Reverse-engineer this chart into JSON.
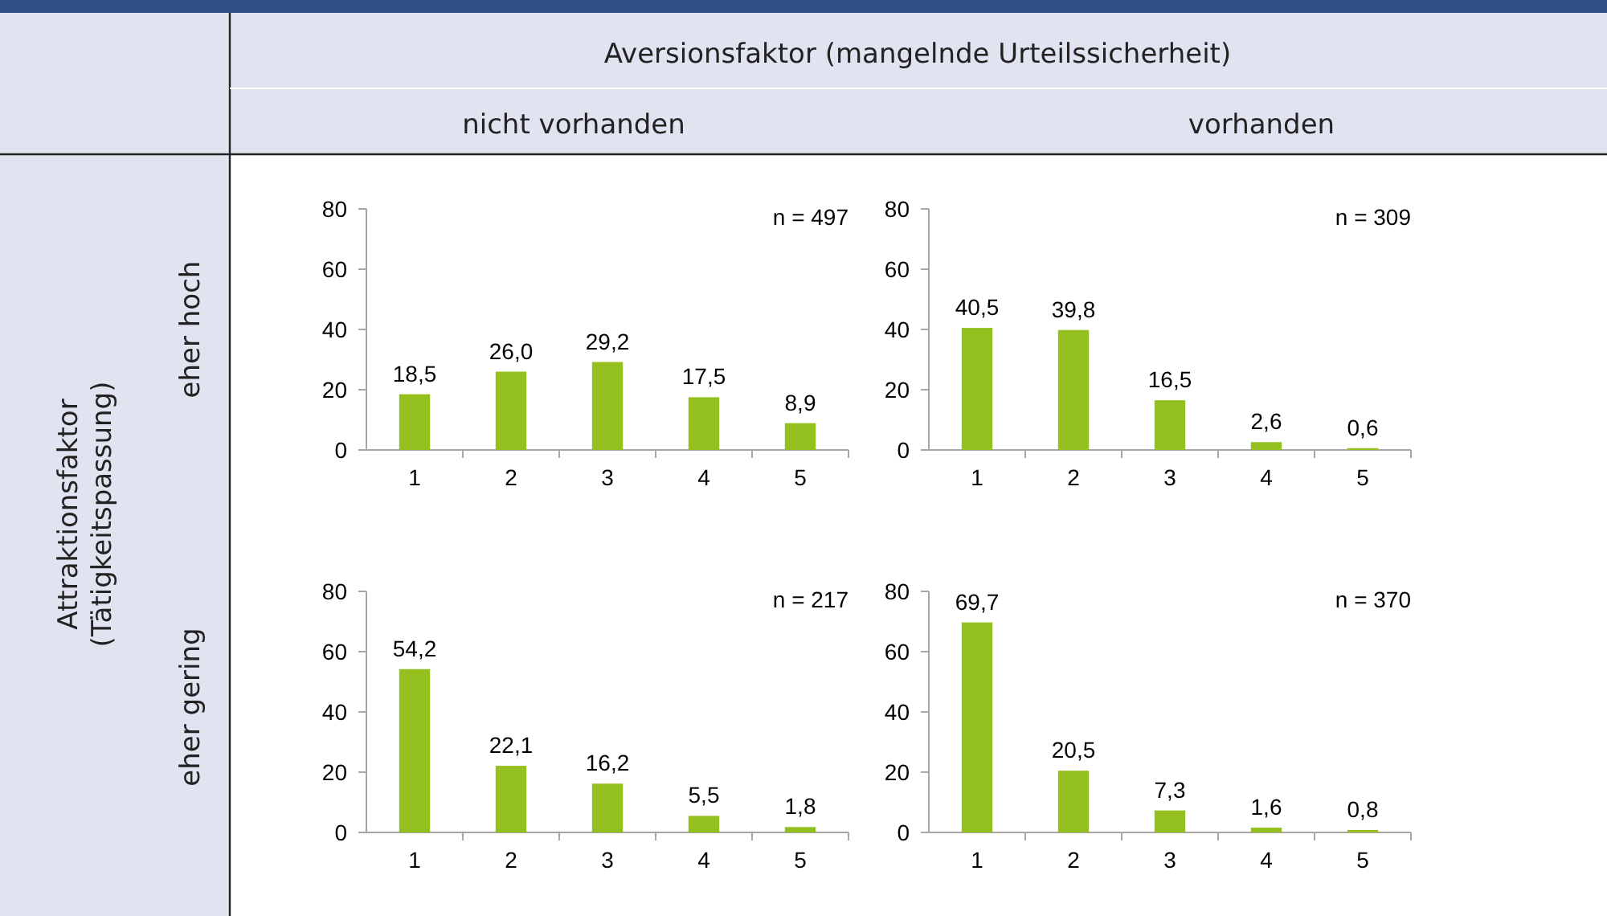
{
  "chart_data": [
    {
      "type": "bar",
      "title": "nicht vorhanden",
      "ylabel": "eher hoch",
      "annotations": [
        "n = 497",
        "Aversionsfaktor (mangelnde Urteilssicherheit)"
      ],
      "categories": [
        "1",
        "2",
        "3",
        "4",
        "5"
      ],
      "values": [
        18.5,
        26.0,
        29.2,
        17.5,
        8.9
      ],
      "value_labels": [
        "18,5",
        "26,0",
        "29,2",
        "17,5",
        "8,9"
      ],
      "color": "#93c01f",
      "ylim": [
        0,
        80
      ],
      "yticks": [
        0,
        20,
        40,
        60,
        80
      ]
    },
    {
      "type": "bar",
      "title": "vorhanden",
      "annotations": [
        "n = 309"
      ],
      "categories": [
        "1",
        "2",
        "3",
        "4",
        "5"
      ],
      "values": [
        40.5,
        39.8,
        16.5,
        2.6,
        0.6
      ],
      "value_labels": [
        "40,5",
        "39,8",
        "16,5",
        "2,6",
        "0,6"
      ],
      "color": "#93c01f",
      "ylim": [
        0,
        80
      ],
      "yticks": [
        0,
        20,
        40,
        60,
        80
      ]
    },
    {
      "type": "bar",
      "ylabel": "eher gering",
      "annotations": [
        "n = 217",
        "Attraktionsfaktor\n(Tätigkeitspassung)"
      ],
      "categories": [
        "1",
        "2",
        "3",
        "4",
        "5"
      ],
      "values": [
        54.2,
        22.1,
        16.2,
        5.5,
        1.8
      ],
      "value_labels": [
        "54,2",
        "22,1",
        "16,2",
        "5,5",
        "1,8"
      ],
      "color": "#93c01f",
      "ylim": [
        0,
        80
      ],
      "yticks": [
        0,
        20,
        40,
        60,
        80
      ]
    },
    {
      "type": "bar",
      "annotations": [
        "n = 370"
      ],
      "categories": [
        "1",
        "2",
        "3",
        "4",
        "5"
      ],
      "values": [
        69.7,
        20.5,
        7.3,
        1.6,
        0.8
      ],
      "value_labels": [
        "69,7",
        "20,5",
        "7,3",
        "1,6",
        "0,8"
      ],
      "color": "#93c01f",
      "ylim": [
        0,
        80
      ],
      "yticks": [
        0,
        20,
        40,
        60,
        80
      ]
    }
  ]
}
